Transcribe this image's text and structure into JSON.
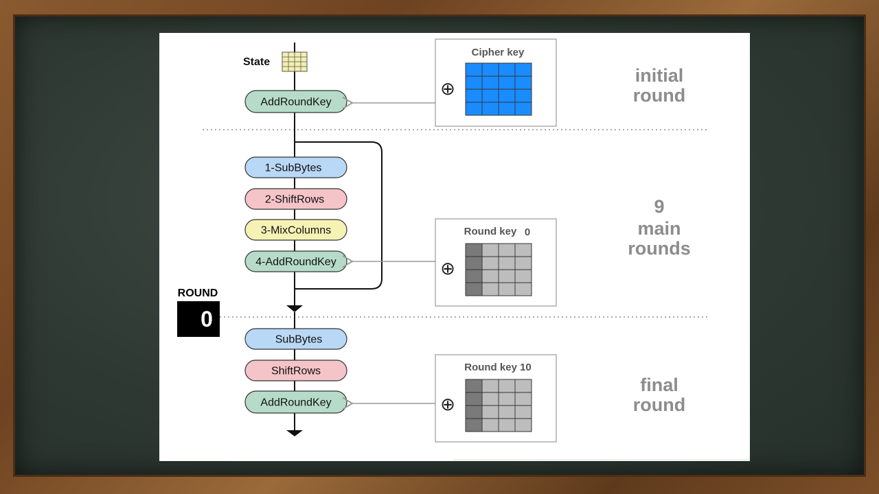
{
  "diagram": {
    "state_label": "State",
    "initial_step": "AddRoundKey",
    "main_steps": [
      "1-SubBytes",
      "2-ShiftRows",
      "3-MixColumns",
      "4-AddRoundKey"
    ],
    "final_steps": [
      "SubBytes",
      "ShiftRows",
      "AddRoundKey"
    ],
    "keys": [
      {
        "label": "Cipher key",
        "xor_symbol": "⊕",
        "color": "#1a8cff"
      },
      {
        "label": "Round key",
        "index": "0",
        "xor_symbol": "⊕",
        "color": "#bdbdbd"
      },
      {
        "label": "Round key 10",
        "xor_symbol": "⊕",
        "color": "#bdbdbd"
      }
    ],
    "round_counter": {
      "label": "ROUND",
      "value": "0"
    },
    "section_labels": {
      "initial": [
        "initial",
        "round"
      ],
      "main": [
        "9",
        "main",
        "rounds"
      ],
      "final": [
        "final",
        "round"
      ]
    },
    "colors": {
      "subbytes": "#b9d8f6",
      "shiftrows": "#f4c4c8",
      "mixcolumns": "#f5f2b4",
      "addroundkey": "#b6dcc9",
      "state_grid": "#f3efb0",
      "cipher_key": "#1a8cff",
      "round_key": "#bdbdbd",
      "round_key_dark": "#7a7a7a",
      "section_text": "#8c8c8c"
    }
  }
}
